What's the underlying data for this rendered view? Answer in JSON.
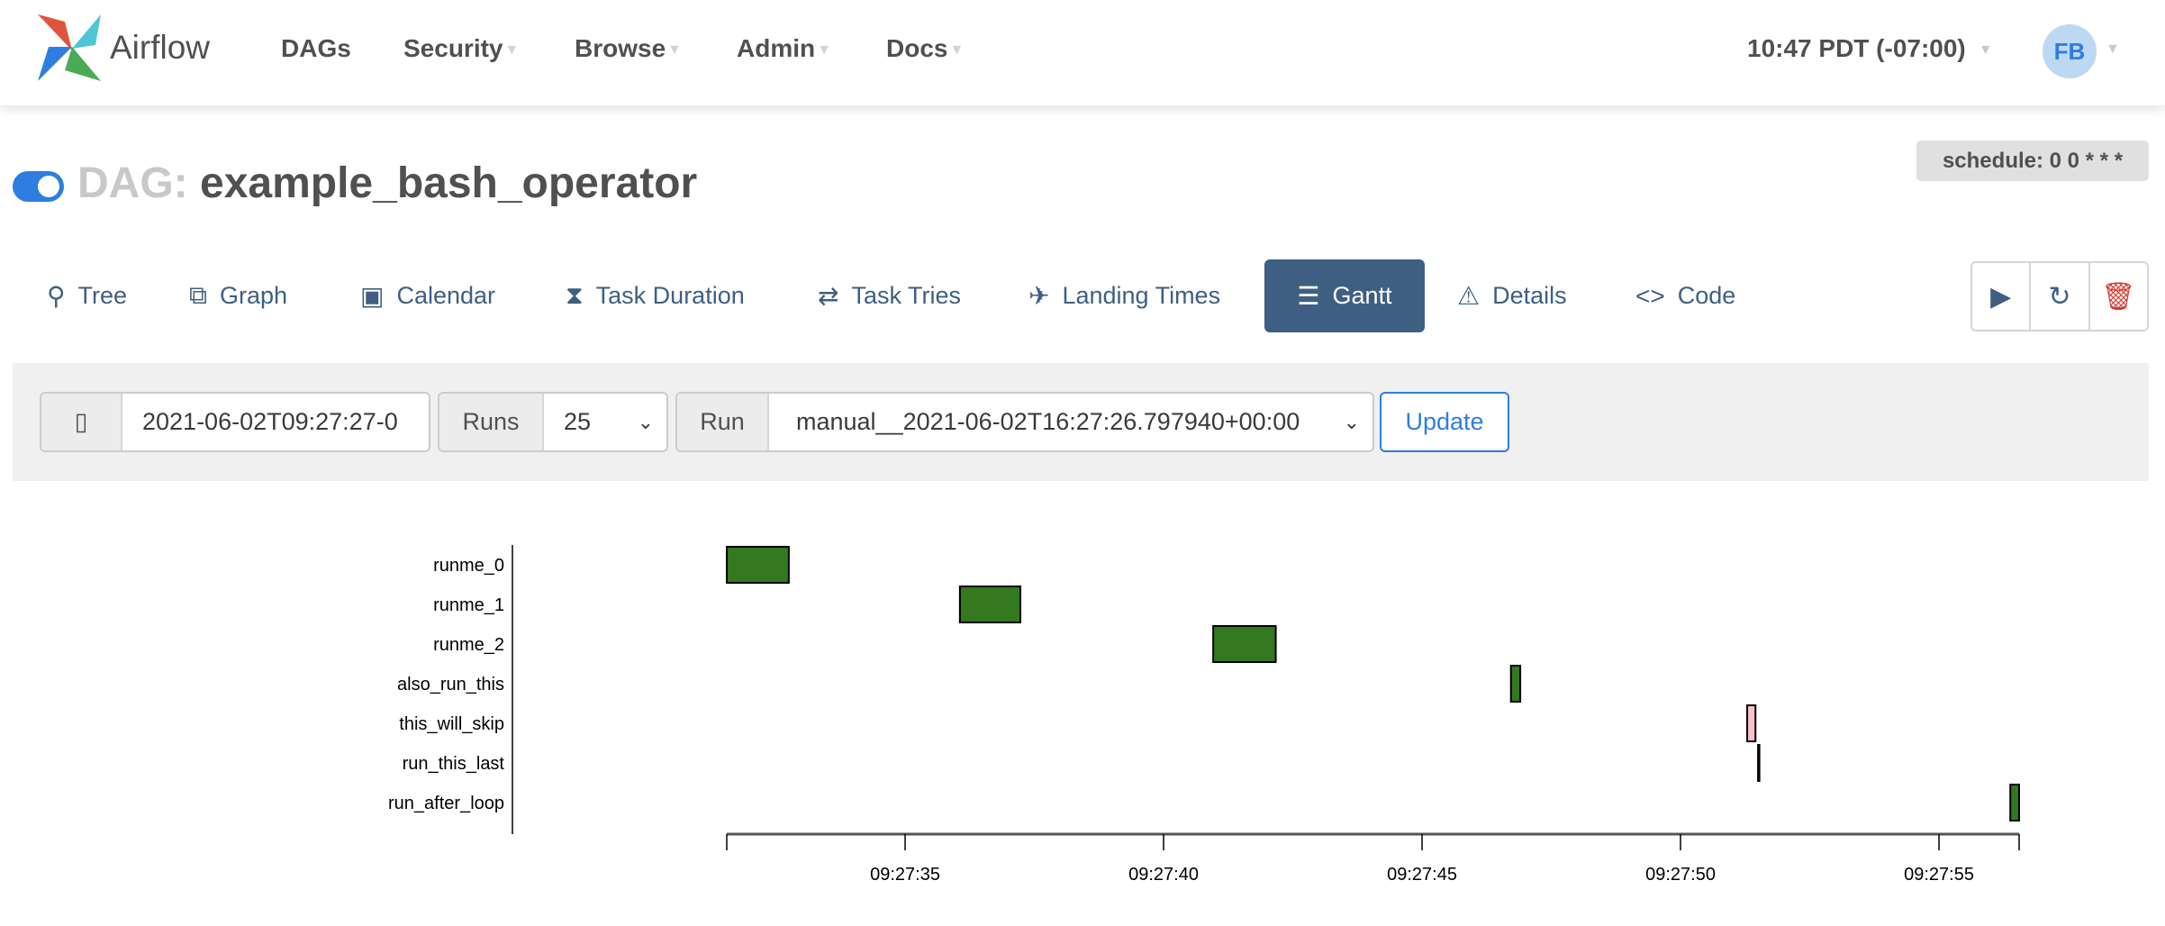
{
  "navbar": {
    "brand": "Airflow",
    "items": [
      {
        "label": "DAGs",
        "caret": false
      },
      {
        "label": "Security",
        "caret": true
      },
      {
        "label": "Browse",
        "caret": true
      },
      {
        "label": "Admin",
        "caret": true
      },
      {
        "label": "Docs",
        "caret": true
      }
    ],
    "time": "10:47 PDT (-07:00)",
    "avatar": "FB"
  },
  "dag": {
    "prefix": "DAG:",
    "name": "example_bash_operator",
    "schedule": "schedule: 0 0 * * *",
    "paused": false
  },
  "tabs": [
    {
      "label": "Tree",
      "icon": "tree-icon"
    },
    {
      "label": "Graph",
      "icon": "graph-icon"
    },
    {
      "label": "Calendar",
      "icon": "calendar-icon"
    },
    {
      "label": "Task Duration",
      "icon": "hourglass-icon"
    },
    {
      "label": "Task Tries",
      "icon": "repeat-icon"
    },
    {
      "label": "Landing Times",
      "icon": "plane-landing-icon"
    },
    {
      "label": "Gantt",
      "icon": "gantt-icon",
      "active": true
    },
    {
      "label": "Details",
      "icon": "warning-triangle-icon"
    },
    {
      "label": "Code",
      "icon": "code-icon"
    }
  ],
  "actions": [
    {
      "icon": "play-icon"
    },
    {
      "icon": "refresh-icon"
    },
    {
      "icon": "trash-icon"
    }
  ],
  "filters": {
    "base_date": "2021-06-02T09:27:27-0",
    "runs_label": "Runs",
    "runs_value": "25",
    "run_label": "Run",
    "run_value": "manual__2021-06-02T16:27:26.797940+00:00",
    "update_label": "Update"
  },
  "colors": {
    "success": "#34781f",
    "skipped": "#ffc0cb",
    "accent": "#3e5f82",
    "link": "#2e7de0"
  },
  "chart_data": {
    "type": "gantt",
    "x_range": [
      "09:27:31.55",
      "09:27:56.55"
    ],
    "x_ticks": [
      "09:27:35",
      "09:27:40",
      "09:27:45",
      "09:27:50",
      "09:27:55"
    ],
    "tasks": [
      {
        "name": "runme_0",
        "start": "09:27:31.55",
        "end": "09:27:32.75",
        "state": "success"
      },
      {
        "name": "runme_1",
        "start": "09:27:36.06",
        "end": "09:27:37.23",
        "state": "success"
      },
      {
        "name": "runme_2",
        "start": "09:27:40.96",
        "end": "09:27:42.17",
        "state": "success"
      },
      {
        "name": "also_run_this",
        "start": "09:27:46.72",
        "end": "09:27:46.90",
        "state": "success"
      },
      {
        "name": "this_will_skip",
        "start": "09:27:51.29",
        "end": "09:27:51.45",
        "state": "skipped"
      },
      {
        "name": "run_this_last",
        "start": "09:27:51.50",
        "end": "09:27:51.50",
        "state": "skipped"
      },
      {
        "name": "run_after_loop",
        "start": "09:27:56.38",
        "end": "09:27:56.55",
        "state": "success"
      }
    ]
  }
}
